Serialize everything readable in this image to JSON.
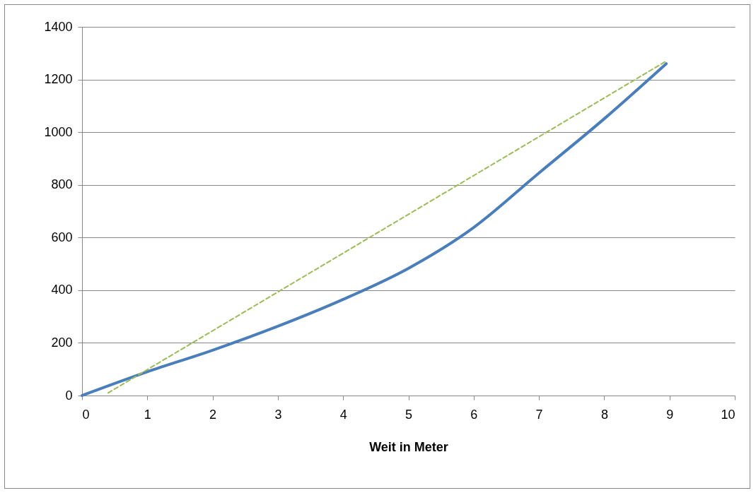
{
  "chart_data": {
    "type": "line",
    "xlabel": "Weit in Meter",
    "xlim": [
      0,
      10
    ],
    "xticks": [
      0,
      1,
      2,
      3,
      4,
      5,
      6,
      7,
      8,
      9,
      10
    ],
    "ylim": [
      0,
      1400
    ],
    "yticks": [
      0,
      200,
      400,
      600,
      800,
      1000,
      1200,
      1400
    ],
    "grid": "y",
    "marker": "none",
    "series": [
      {
        "color": "#4a7ebb",
        "line_style": "solid",
        "x": [
          0,
          1,
          2,
          3,
          4,
          5,
          6,
          7,
          8,
          8.95
        ],
        "values": [
          0,
          90,
          172,
          263,
          365,
          483,
          638,
          845,
          1051,
          1260
        ]
      },
      {
        "color": "#9bbb59",
        "line_style": "dashed",
        "x": [
          0.4,
          8.95
        ],
        "values": [
          10,
          1270
        ]
      }
    ]
  }
}
